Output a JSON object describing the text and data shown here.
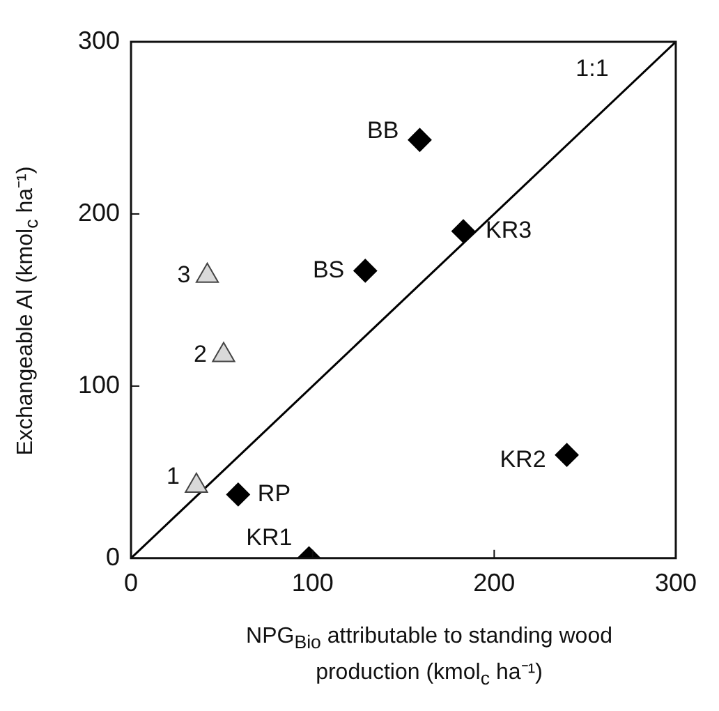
{
  "chart_data": {
    "type": "scatter",
    "xlabel": "NPG$_{Bio}$ attributable to standing wood production (kmol$_{c}$ ha⁻¹)",
    "ylabel": "Exchangeable Al (kmol$_{c}$ ha⁻¹)",
    "xlim": [
      0,
      300
    ],
    "xticks": [
      0,
      100,
      200,
      300
    ],
    "ylim": [
      0,
      300
    ],
    "yticks": [
      0,
      100,
      200,
      300
    ],
    "series": [
      {
        "type": "scatter",
        "color": "#000000",
        "marker": "diamond",
        "x": [
          159,
          183,
          129,
          240,
          59,
          98
        ],
        "values": [
          243,
          190,
          167,
          60,
          37,
          0
        ]
      },
      {
        "type": "scatter",
        "color": "#d9d9d9",
        "marker": "triangle",
        "x": [
          42,
          51,
          36
        ],
        "values": [
          164,
          118,
          42
        ]
      },
      {
        "type": "line",
        "name": "1:1",
        "color": "#000000",
        "marker": "none",
        "x": [
          0,
          300
        ],
        "values": [
          0,
          300
        ]
      }
    ],
    "annotations": [
      {
        "text": "BB",
        "x": 159,
        "y": 243
      },
      {
        "text": "KR3",
        "x": 183,
        "y": 190
      },
      {
        "text": "BS",
        "x": 129,
        "y": 167
      },
      {
        "text": "KR2",
        "x": 240,
        "y": 60
      },
      {
        "text": "RP",
        "x": 59,
        "y": 37
      },
      {
        "text": "KR1",
        "x": 98,
        "y": 0
      },
      {
        "text": "3",
        "x": 42,
        "y": 164
      },
      {
        "text": "2",
        "x": 51,
        "y": 118
      },
      {
        "text": "1",
        "x": 36,
        "y": 42
      }
    ]
  }
}
